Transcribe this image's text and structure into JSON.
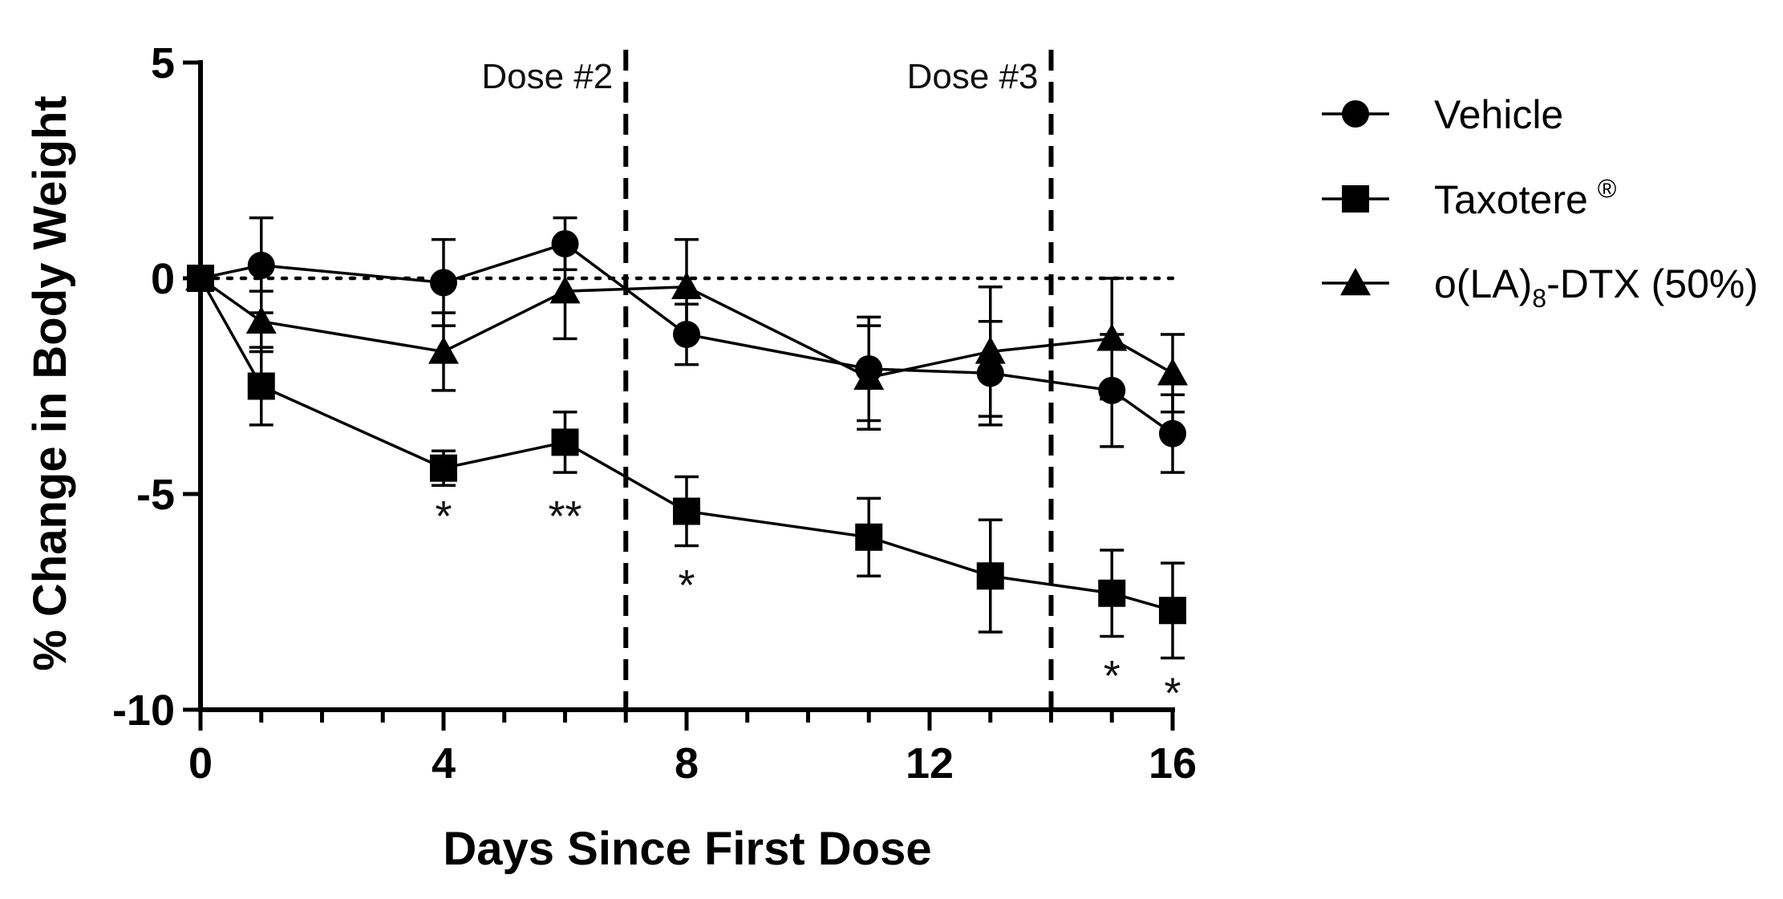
{
  "chart_data": {
    "type": "line",
    "title": "",
    "xlabel": "Days Since First Dose",
    "ylabel": "% Change in Body Weight",
    "xlim": [
      0,
      16
    ],
    "ylim": [
      -10,
      5
    ],
    "xticks": [
      0,
      4,
      8,
      12,
      16
    ],
    "xtick_labels": [
      "0",
      "4",
      "8",
      "12",
      "16"
    ],
    "yticks": [
      5,
      0,
      -5,
      -10
    ],
    "ytick_labels": [
      "5",
      "0",
      "-5",
      "-10"
    ],
    "reference_line_y": 0,
    "dose_markers": [
      {
        "day": 7,
        "label": "Dose #2"
      },
      {
        "day": 14,
        "label": "Dose #3"
      }
    ],
    "series": [
      {
        "name": "Vehicle",
        "marker": "circle",
        "x": [
          0,
          1,
          4,
          6,
          8,
          11,
          13,
          15,
          16
        ],
        "values": [
          0,
          0.3,
          -0.1,
          0.8,
          -1.3,
          -2.1,
          -2.2,
          -2.6,
          -3.6
        ],
        "errors": [
          0,
          1.1,
          1.0,
          0.6,
          0.7,
          1.2,
          1.2,
          1.3,
          0.9
        ]
      },
      {
        "name": "Taxotere",
        "superscript": "®",
        "marker": "square",
        "x": [
          0,
          1,
          4,
          6,
          8,
          11,
          13,
          15,
          16
        ],
        "values": [
          0,
          -2.5,
          -4.4,
          -3.8,
          -5.4,
          -6.0,
          -6.9,
          -7.3,
          -7.7
        ],
        "errors": [
          0,
          0.9,
          0.4,
          0.7,
          0.8,
          0.9,
          1.3,
          1.0,
          1.1
        ]
      },
      {
        "name": "o(LA)8-DTX (50%)",
        "legend_parts": {
          "pre": "o(LA)",
          "sub": "8",
          "post": "-DTX (50%)"
        },
        "marker": "triangle",
        "x": [
          0,
          1,
          4,
          6,
          8,
          11,
          13,
          15,
          16
        ],
        "values": [
          0,
          -1.0,
          -1.7,
          -0.3,
          -0.2,
          -2.3,
          -1.7,
          -1.4,
          -2.2
        ],
        "errors": [
          0,
          0.7,
          0.9,
          1.1,
          1.1,
          1.2,
          1.5,
          1.4,
          0.9
        ]
      }
    ],
    "annotations": [
      {
        "x": 4,
        "y": -5.3,
        "text": "*"
      },
      {
        "x": 6,
        "y": -5.3,
        "text": "**"
      },
      {
        "x": 8,
        "y": -6.9,
        "text": "*"
      },
      {
        "x": 15,
        "y": -9.0,
        "text": "*"
      },
      {
        "x": 16,
        "y": -9.4,
        "text": "*"
      }
    ]
  }
}
